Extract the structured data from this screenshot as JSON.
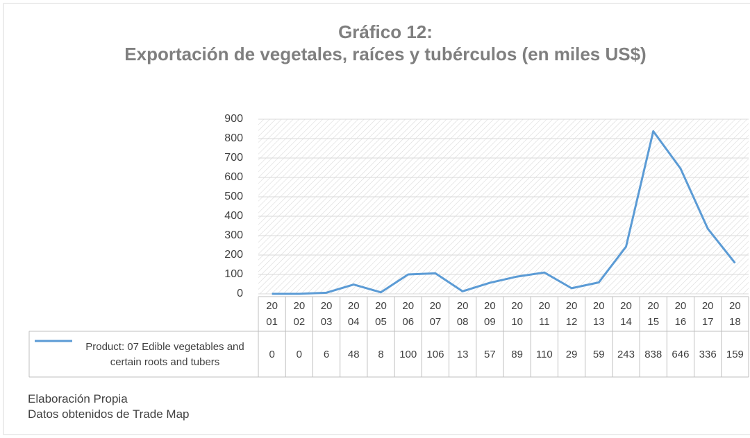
{
  "chart_data": {
    "type": "line",
    "title": "Gráfico 12:\nExportación de vegetales, raíces y tubérculos (en miles US$)",
    "categories": [
      "2001",
      "2002",
      "2003",
      "2004",
      "2005",
      "2006",
      "2007",
      "2008",
      "2009",
      "2010",
      "2011",
      "2012",
      "2013",
      "2014",
      "2015",
      "2016",
      "2017",
      "2018"
    ],
    "series": [
      {
        "name": "Product: 07 Edible vegetables and certain roots and tubers",
        "color": "#5b9bd5",
        "values": [
          0,
          0,
          6,
          48,
          8,
          100,
          106,
          13,
          57,
          89,
          110,
          29,
          59,
          243,
          838,
          646,
          336,
          159
        ]
      }
    ],
    "ylim": [
      0,
      900
    ],
    "yticks": [
      0,
      100,
      200,
      300,
      400,
      500,
      600,
      700,
      800,
      900
    ],
    "grid": true,
    "data_table": true
  },
  "notes": [
    "Elaboración Propia",
    "Datos obtenidos de Trade Map"
  ]
}
